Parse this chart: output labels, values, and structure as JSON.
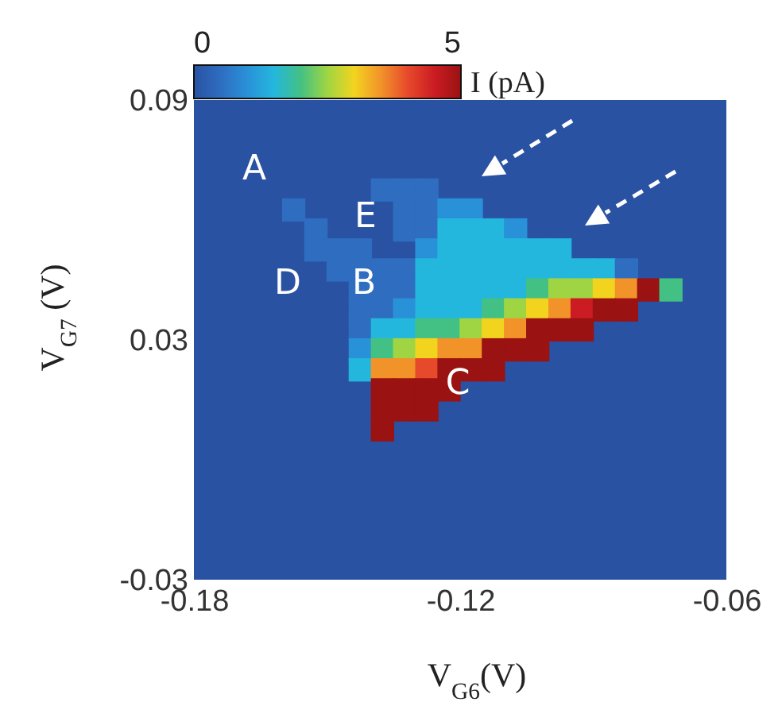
{
  "chart_data": {
    "type": "scatter",
    "marker": "square",
    "xlabel": "V$_{G6}$(V)",
    "ylabel": "V$_{G7}$ (V)",
    "clabel": "I (pA)",
    "xlim": [
      -0.18,
      -0.06
    ],
    "xticks": [
      -0.18,
      -0.12,
      -0.06
    ],
    "ylim": [
      -0.03,
      0.09
    ],
    "yticks": [
      -0.03,
      0.03,
      0.09
    ],
    "clim": [
      0,
      5
    ],
    "cticks": [
      0,
      5
    ],
    "x": [
      -0.1375,
      -0.1325,
      -0.1275,
      -0.1575,
      -0.1325,
      -0.1275,
      -0.1225,
      -0.1175,
      -0.1525,
      -0.1325,
      -0.1275,
      -0.1225,
      -0.1175,
      -0.1125,
      -0.1075,
      -0.1525,
      -0.1475,
      -0.1425,
      -0.1275,
      -0.1225,
      -0.1175,
      -0.1125,
      -0.1075,
      -0.1025,
      -0.0975,
      -0.1475,
      -0.1425,
      -0.1375,
      -0.1325,
      -0.1275,
      -0.1225,
      -0.1175,
      -0.1125,
      -0.1075,
      -0.1025,
      -0.0975,
      -0.0925,
      -0.0875,
      -0.0825,
      -0.1425,
      -0.1375,
      -0.1325,
      -0.1275,
      -0.1225,
      -0.1175,
      -0.1125,
      -0.1075,
      -0.1025,
      -0.0975,
      -0.0925,
      -0.0875,
      -0.0825,
      -0.0775,
      -0.0725,
      -0.1425,
      -0.1375,
      -0.1325,
      -0.1275,
      -0.1225,
      -0.1175,
      -0.1125,
      -0.1075,
      -0.1025,
      -0.0975,
      -0.0925,
      -0.0875,
      -0.0825,
      -0.1425,
      -0.1375,
      -0.1325,
      -0.1275,
      -0.1225,
      -0.1175,
      -0.1125,
      -0.1075,
      -0.1025,
      -0.0975,
      -0.0925,
      -0.1425,
      -0.1375,
      -0.1325,
      -0.1275,
      -0.1225,
      -0.1175,
      -0.1125,
      -0.1075,
      -0.1025,
      -0.1425,
      -0.1375,
      -0.1325,
      -0.1275,
      -0.1225,
      -0.1175,
      -0.1125,
      -0.1375,
      -0.1325,
      -0.1275,
      -0.1225,
      -0.1375,
      -0.1325,
      -0.1275,
      -0.1375
    ],
    "values": [
      0.0675,
      0.0675,
      0.0675,
      0.0625,
      0.0625,
      0.0625,
      0.0625,
      0.0625,
      0.0575,
      0.0575,
      0.0575,
      0.0575,
      0.0575,
      0.0575,
      0.0575,
      0.0525,
      0.0525,
      0.0525,
      0.0525,
      0.0525,
      0.0525,
      0.0525,
      0.0525,
      0.0525,
      0.0525,
      0.0475,
      0.0475,
      0.0475,
      0.0475,
      0.0475,
      0.0475,
      0.0475,
      0.0475,
      0.0475,
      0.0475,
      0.0475,
      0.0475,
      0.0475,
      0.0475,
      0.0425,
      0.0425,
      0.0425,
      0.0425,
      0.0425,
      0.0425,
      0.0425,
      0.0425,
      0.0425,
      0.0425,
      0.0425,
      0.0425,
      0.0425,
      0.0425,
      0.0425,
      0.0375,
      0.0375,
      0.0375,
      0.0375,
      0.0375,
      0.0375,
      0.0375,
      0.0375,
      0.0375,
      0.0375,
      0.0375,
      0.0375,
      0.0375,
      0.0325,
      0.0325,
      0.0325,
      0.0325,
      0.0325,
      0.0325,
      0.0325,
      0.0325,
      0.0325,
      0.0325,
      0.0325,
      0.0275,
      0.0275,
      0.0275,
      0.0275,
      0.0275,
      0.0275,
      0.0275,
      0.0275,
      0.0275,
      0.0225,
      0.0225,
      0.0225,
      0.0225,
      0.0225,
      0.0225,
      0.0225,
      0.0175,
      0.0175,
      0.0175,
      0.0175,
      0.0125,
      0.0125,
      0.0125,
      0.0075
    ],
    "cvalues": [
      0.5,
      0.5,
      0.5,
      0.5,
      0.5,
      0.5,
      1,
      1,
      0.5,
      0.5,
      0.5,
      1.5,
      1.5,
      1.5,
      1,
      0.5,
      0.5,
      0.5,
      1,
      1.5,
      1.5,
      1.5,
      1.5,
      1.5,
      1.5,
      0.5,
      0.5,
      0.5,
      0.5,
      1.5,
      1.5,
      1.5,
      1.5,
      1.5,
      1.5,
      1.5,
      1.5,
      1.5,
      0.5,
      0.5,
      0.5,
      0.5,
      1.5,
      1.5,
      1.5,
      1.5,
      1.5,
      2,
      2.5,
      2.5,
      3,
      3.5,
      5,
      2,
      0.5,
      0.5,
      1,
      1.5,
      1.5,
      1.5,
      2,
      2.5,
      3,
      3.5,
      4.5,
      5,
      5,
      0.5,
      1.5,
      1.5,
      2,
      2,
      2.5,
      3,
      3.5,
      5,
      5,
      5,
      1,
      2,
      2.5,
      3,
      3.5,
      3.5,
      5,
      5,
      5,
      1.5,
      3.5,
      3.5,
      4,
      5,
      5,
      5,
      5,
      5,
      5,
      5,
      5,
      5,
      5,
      5
    ],
    "annotations": [
      "A",
      "D",
      "E",
      "B",
      "C"
    ]
  }
}
